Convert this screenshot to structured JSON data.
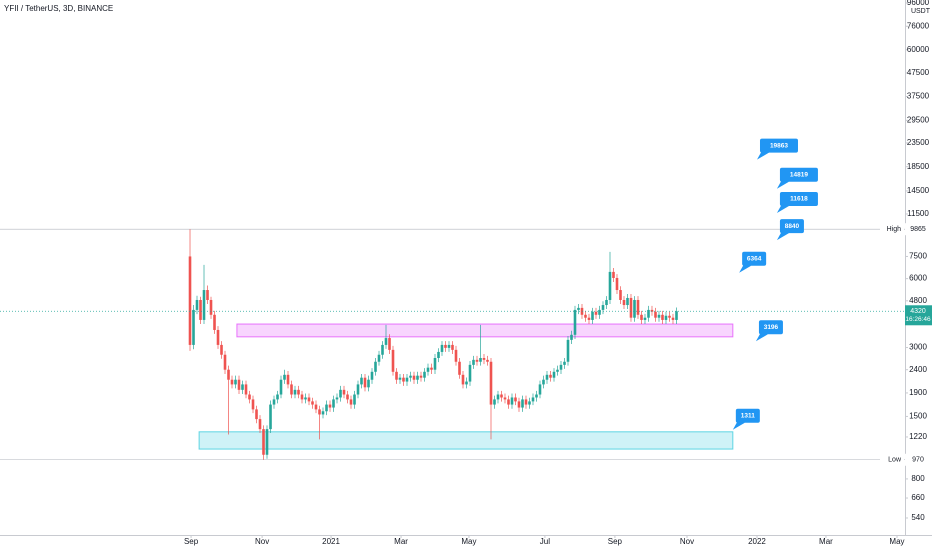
{
  "chart_data": {
    "type": "candlestick",
    "title": "YFII / TetherUS, 3D, BINANCE",
    "unit": "USDT",
    "log_scale": true,
    "grid": false,
    "up_color": "#26a69a",
    "down_color": "#ef5350",
    "open": [
      7500,
      3080,
      4380,
      4840,
      3960,
      5350,
      4840,
      4170,
      3580,
      3080,
      2790,
      2400,
      2170,
      2070,
      2170,
      1960,
      2070,
      1870,
      1780,
      1610,
      1460,
      1320,
      1020,
      1320,
      1690,
      1780,
      1870,
      2170,
      2280,
      2070,
      1870,
      1960,
      1870,
      1780,
      1815,
      1745,
      1690,
      1610,
      1530,
      1580,
      1690,
      1640,
      1780,
      1815,
      1960,
      1870,
      1780,
      1690,
      1870,
      2070,
      2215,
      2010,
      2170,
      2350,
      2600,
      2790,
      3080,
      3300,
      2930,
      2350,
      2170,
      2215,
      2130,
      2215,
      2260,
      2170,
      2260,
      2215,
      2350,
      2450,
      2400,
      2700,
      2870,
      3080,
      2990,
      3080,
      2930,
      2600,
      2280,
      2070,
      2130,
      2520,
      2650,
      2600,
      2700,
      2650,
      2600,
      1690,
      1780,
      1870,
      1815,
      1780,
      1690,
      1815,
      1745,
      1640,
      1780,
      1690,
      1745,
      1815,
      1870,
      2070,
      2170,
      2280,
      2215,
      2350,
      2400,
      2520,
      2600,
      3240,
      3410,
      4380,
      4470,
      4170,
      4050,
      3960,
      4300,
      4170,
      4380,
      4600,
      4840,
      6420,
      6040,
      5350,
      4840,
      4600,
      4940,
      4050,
      4840,
      4170,
      3960,
      4050,
      4380,
      4300,
      4050,
      4170,
      3960,
      4130,
      4050,
      3960
    ],
    "high": [
      9865,
      4600,
      5050,
      5000,
      6890,
      5600,
      5000,
      4340,
      3720,
      3200,
      2900,
      2500,
      2260,
      2260,
      2260,
      2150,
      2150,
      1940,
      1850,
      1670,
      1520,
      1370,
      1370,
      1760,
      1850,
      1940,
      2260,
      2400,
      2370,
      2150,
      2040,
      2040,
      1940,
      1890,
      1890,
      1810,
      1760,
      1670,
      1640,
      1760,
      1760,
      1850,
      1890,
      2040,
      2040,
      1940,
      1850,
      1940,
      2150,
      2300,
      2300,
      2260,
      2440,
      2700,
      2900,
      3200,
      3770,
      3430,
      3050,
      2440,
      2300,
      2300,
      2300,
      2350,
      2350,
      2350,
      2350,
      2440,
      2550,
      2550,
      2810,
      2980,
      3200,
      3200,
      3200,
      3200,
      3050,
      2700,
      2370,
      2220,
      2620,
      2760,
      2760,
      3770,
      2810,
      2760,
      2700,
      1850,
      1940,
      1940,
      1890,
      1850,
      1890,
      1890,
      1810,
      1850,
      1850,
      1810,
      1890,
      1940,
      2150,
      2260,
      2370,
      2370,
      2440,
      2500,
      2620,
      2700,
      3370,
      3550,
      4560,
      4650,
      4650,
      4340,
      4210,
      4470,
      4470,
      4560,
      4780,
      5030,
      7850,
      6680,
      6280,
      5560,
      5030,
      5140,
      5140,
      5030,
      5030,
      4340,
      4210,
      4560,
      4560,
      4470,
      4340,
      4340,
      4300,
      4300,
      4210,
      4490
    ],
    "low": [
      2900,
      2950,
      4200,
      3800,
      3800,
      4650,
      4000,
      3440,
      2960,
      2680,
      2300,
      1250,
      1990,
      1990,
      1880,
      1880,
      1800,
      1710,
      1550,
      1400,
      1270,
      970,
      980,
      1270,
      1620,
      1710,
      1800,
      2080,
      1990,
      1800,
      1800,
      1800,
      1710,
      1710,
      1680,
      1620,
      1550,
      1190,
      1470,
      1520,
      1570,
      1570,
      1710,
      1740,
      1800,
      1710,
      1620,
      1620,
      1800,
      1990,
      1930,
      1930,
      2080,
      2260,
      2500,
      2680,
      2960,
      2810,
      2260,
      2080,
      2080,
      2040,
      2040,
      2130,
      2080,
      2080,
      2130,
      2130,
      2260,
      2300,
      2300,
      2590,
      2760,
      2870,
      2870,
      2810,
      2500,
      2190,
      1990,
      1990,
      2040,
      2420,
      2500,
      2500,
      2540,
      2500,
      1190,
      1620,
      1710,
      1740,
      1710,
      1620,
      1620,
      1680,
      1570,
      1570,
      1620,
      1620,
      1680,
      1740,
      1800,
      1990,
      2080,
      2130,
      2130,
      2260,
      2300,
      2420,
      2500,
      3110,
      3270,
      4200,
      4000,
      3890,
      3800,
      3800,
      4000,
      4000,
      4200,
      4420,
      4650,
      5800,
      5140,
      4650,
      4420,
      4420,
      3890,
      3890,
      4000,
      3800,
      3800,
      3890,
      4130,
      3890,
      3890,
      3800,
      3800,
      3890,
      3800,
      3800
    ],
    "close": [
      3080,
      4380,
      4840,
      3960,
      5350,
      4840,
      4170,
      3580,
      3080,
      2790,
      2400,
      2170,
      2070,
      2170,
      1960,
      2070,
      1870,
      1780,
      1610,
      1460,
      1320,
      1020,
      1320,
      1690,
      1780,
      1870,
      2170,
      2280,
      2070,
      1870,
      1960,
      1870,
      1780,
      1815,
      1745,
      1690,
      1610,
      1530,
      1580,
      1690,
      1640,
      1780,
      1815,
      1960,
      1870,
      1780,
      1690,
      1870,
      2070,
      2215,
      2010,
      2170,
      2350,
      2600,
      2790,
      3080,
      3300,
      2930,
      2350,
      2170,
      2215,
      2130,
      2215,
      2260,
      2170,
      2260,
      2215,
      2350,
      2450,
      2400,
      2700,
      2870,
      3080,
      2990,
      3080,
      2930,
      2600,
      2280,
      2070,
      2130,
      2520,
      2650,
      2600,
      2700,
      2650,
      2600,
      1690,
      1780,
      1870,
      1815,
      1780,
      1690,
      1815,
      1745,
      1640,
      1780,
      1690,
      1745,
      1815,
      1870,
      2070,
      2170,
      2280,
      2215,
      2350,
      2400,
      2520,
      2600,
      3240,
      3410,
      4380,
      4470,
      4170,
      4050,
      3960,
      4300,
      4170,
      4380,
      4600,
      4840,
      6420,
      6040,
      5350,
      4840,
      4600,
      4940,
      4050,
      4840,
      4170,
      3960,
      4050,
      4380,
      4300,
      4050,
      4170,
      3960,
      4130,
      4050,
      3960,
      4320
    ],
    "xlim": [
      -54.29,
      204.29
    ],
    "xticks": [
      {
        "value": 0.3,
        "label": "Sep"
      },
      {
        "value": 20.6,
        "label": "Nov"
      },
      {
        "value": 40.3,
        "label": "2021"
      },
      {
        "value": 60.3,
        "label": "Mar"
      },
      {
        "value": 79.7,
        "label": "May"
      },
      {
        "value": 101.4,
        "label": "Jul"
      },
      {
        "value": 121.4,
        "label": "Sep"
      },
      {
        "value": 142,
        "label": "Nov"
      },
      {
        "value": 162,
        "label": "2022"
      },
      {
        "value": 181.7,
        "label": "Mar"
      },
      {
        "value": 202,
        "label": "May"
      }
    ],
    "ylim": [
      455,
      98980
    ],
    "yticks": [
      540,
      660,
      800,
      1220,
      1500,
      1900,
      2400,
      3000,
      4800,
      6000,
      7500,
      11500,
      14500,
      18500,
      23500,
      29500,
      37500,
      47500,
      60000,
      76000,
      96000
    ],
    "high_label": "High",
    "high_value": 9865,
    "low_label": "Low",
    "low_value": 970,
    "last_price": 4320,
    "countdown": "16:26:46",
    "zones": [
      {
        "from": 3340,
        "to": 3800,
        "start": 13.4,
        "end": 155.1,
        "color": "#e040fb"
      },
      {
        "from": 1080,
        "to": 1285,
        "start": 2.6,
        "end": 155.1,
        "color": "#26c6da"
      }
    ],
    "annotations": [
      {
        "value": 19863,
        "x": 162
      },
      {
        "value": 14819,
        "x": 167.7
      },
      {
        "value": 11618,
        "x": 167.7
      },
      {
        "value": 8840,
        "x": 167.7
      },
      {
        "value": 6364,
        "x": 156.9
      },
      {
        "value": 3196,
        "x": 161.7
      },
      {
        "value": 1311,
        "x": 155.1
      }
    ],
    "annotation_color": "#2196f3"
  }
}
